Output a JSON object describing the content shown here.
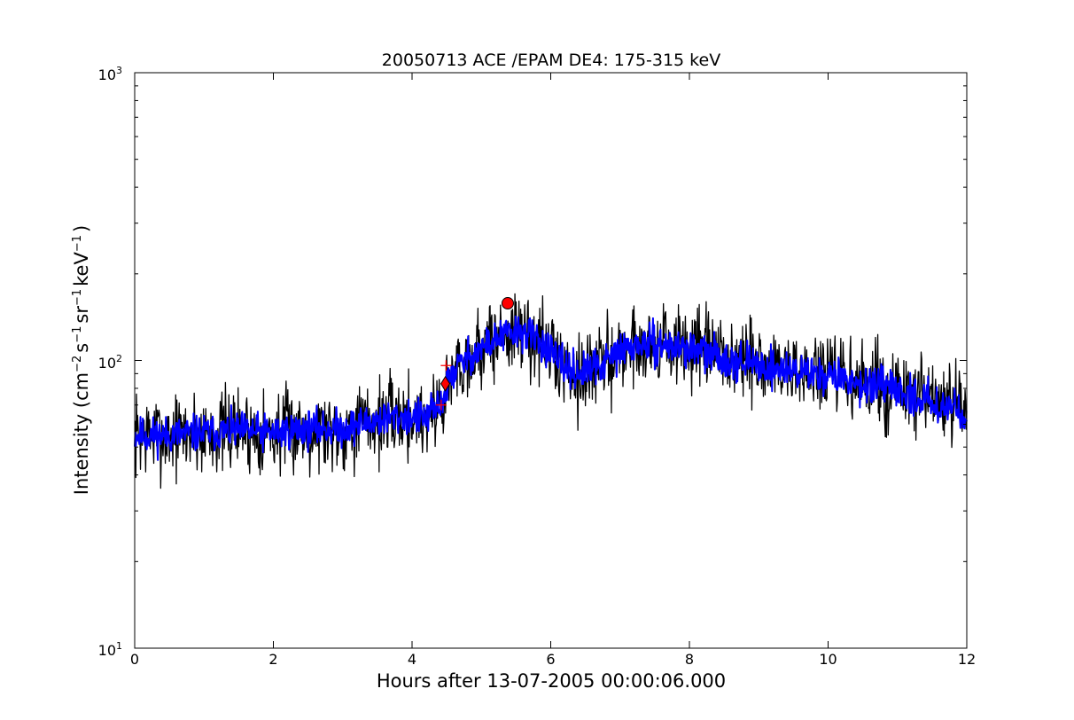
{
  "chart_data": {
    "type": "line",
    "title": "20050713 ACE /EPAM DE4: 175-315 keV",
    "xlabel": "Hours after 13-07-2005 00:00:06.000",
    "ylabel_parts": {
      "pre": "Intensity (cm",
      "sup1": "−2",
      "s": "s",
      "sup2": "−1",
      "sr": "sr",
      "sup3": "−1",
      "kev": "keV",
      "sup4": "−1",
      "post": ")"
    },
    "x_ticks": [
      "0",
      "2",
      "4",
      "6",
      "8",
      "10",
      "12"
    ],
    "y_tick_labels": [
      {
        "base": "10",
        "exp": "1"
      },
      {
        "base": "10",
        "exp": "2"
      },
      {
        "base": "10",
        "exp": "3"
      }
    ],
    "xlim": [
      0,
      12
    ],
    "ylim": [
      10,
      1000
    ],
    "yscale": "log",
    "grid": false,
    "trend_points": [
      [
        0.0,
        55
      ],
      [
        0.5,
        55
      ],
      [
        1.0,
        56
      ],
      [
        1.5,
        57
      ],
      [
        2.0,
        56
      ],
      [
        2.5,
        58
      ],
      [
        3.0,
        58
      ],
      [
        3.5,
        62
      ],
      [
        3.9,
        64
      ],
      [
        4.2,
        63
      ],
      [
        4.4,
        70
      ],
      [
        4.5,
        80
      ],
      [
        4.6,
        92
      ],
      [
        4.8,
        102
      ],
      [
        5.0,
        110
      ],
      [
        5.3,
        122
      ],
      [
        5.6,
        126
      ],
      [
        5.9,
        114
      ],
      [
        6.1,
        99
      ],
      [
        6.4,
        90
      ],
      [
        6.7,
        95
      ],
      [
        7.0,
        108
      ],
      [
        7.3,
        114
      ],
      [
        7.6,
        113
      ],
      [
        8.0,
        110
      ],
      [
        8.5,
        102
      ],
      [
        9.0,
        96
      ],
      [
        9.5,
        92
      ],
      [
        10.0,
        89
      ],
      [
        10.5,
        83
      ],
      [
        11.0,
        78
      ],
      [
        11.5,
        72
      ],
      [
        11.8,
        68
      ],
      [
        12.0,
        66
      ]
    ],
    "series": [
      {
        "color": "#000000",
        "style": "raw intensity",
        "noise": 0.16,
        "seed": 7
      },
      {
        "color": "#0000ff",
        "style": "smoothed",
        "noise": 0.07,
        "seed": 11
      }
    ],
    "markers": [
      {
        "type": "circle",
        "x": 5.38,
        "y": 158,
        "color": "#ff0000"
      },
      {
        "type": "diamond",
        "x": 4.48,
        "y": 83,
        "color": "#ff0000"
      },
      {
        "type": "plus",
        "x": 4.49,
        "y": 96,
        "color": "#ff0000"
      },
      {
        "type": "plus",
        "x": 4.42,
        "y": 70,
        "color": "#ff0000"
      }
    ]
  }
}
